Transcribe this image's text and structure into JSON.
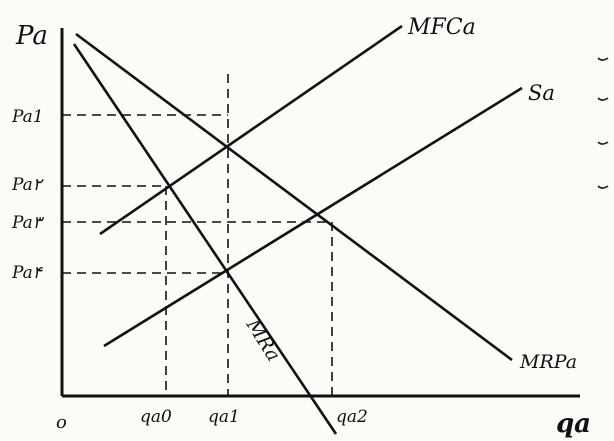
{
  "axes": {
    "y_label": "Pa",
    "x_label": "qa",
    "origin": "o"
  },
  "curves": {
    "mfc": "MFCa",
    "supply": "Sa",
    "mrp": "MRPa",
    "mr": "MRa"
  },
  "price_ticks": [
    "Pa1",
    "Pa۲",
    "Pa۳",
    "Pa۴"
  ],
  "quantity_ticks": [
    "qa0",
    "qa1",
    "qa2"
  ]
}
